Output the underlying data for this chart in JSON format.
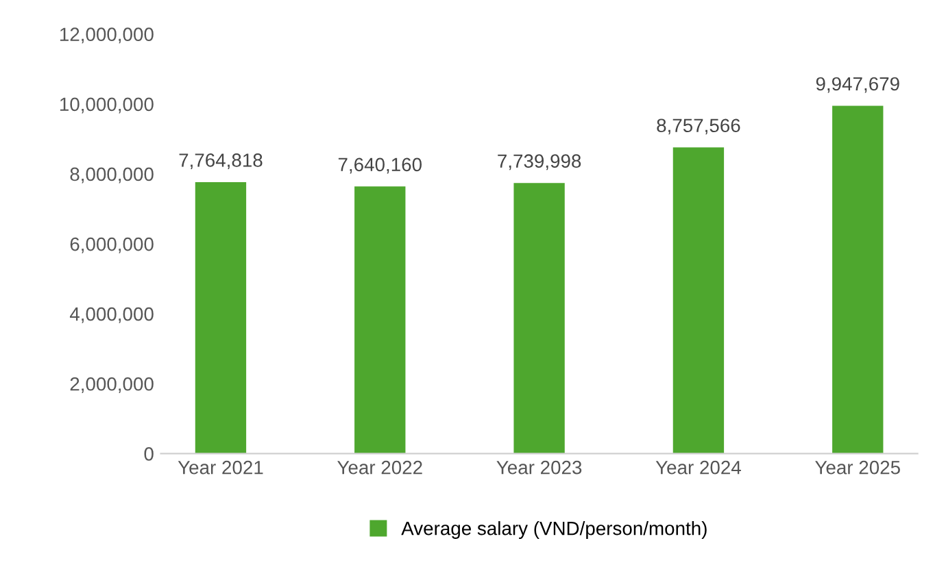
{
  "chart_data": {
    "type": "bar",
    "categories": [
      "Year 2021",
      "Year 2022",
      "Year 2023",
      "Year 2024",
      "Year 2025"
    ],
    "series": [
      {
        "name": "Average salary (VND/person/month)",
        "color": "#4ea72e",
        "values": [
          7764818,
          7640160,
          7739998,
          8757566,
          9947679
        ]
      }
    ],
    "value_labels": [
      "7,764,818",
      "7,640,160",
      "7,739,998",
      "8,757,566",
      "9,947,679"
    ],
    "ylim": [
      0,
      12000000
    ],
    "yticks": [
      {
        "value": 0,
        "label": "0"
      },
      {
        "value": 2000000,
        "label": "2,000,000"
      },
      {
        "value": 4000000,
        "label": "4,000,000"
      },
      {
        "value": 6000000,
        "label": "6,000,000"
      },
      {
        "value": 8000000,
        "label": "8,000,000"
      },
      {
        "value": 10000000,
        "label": "10,000,000"
      },
      {
        "value": 12000000,
        "label": "12,000,000"
      }
    ],
    "grid": false,
    "legend": "bottom"
  }
}
